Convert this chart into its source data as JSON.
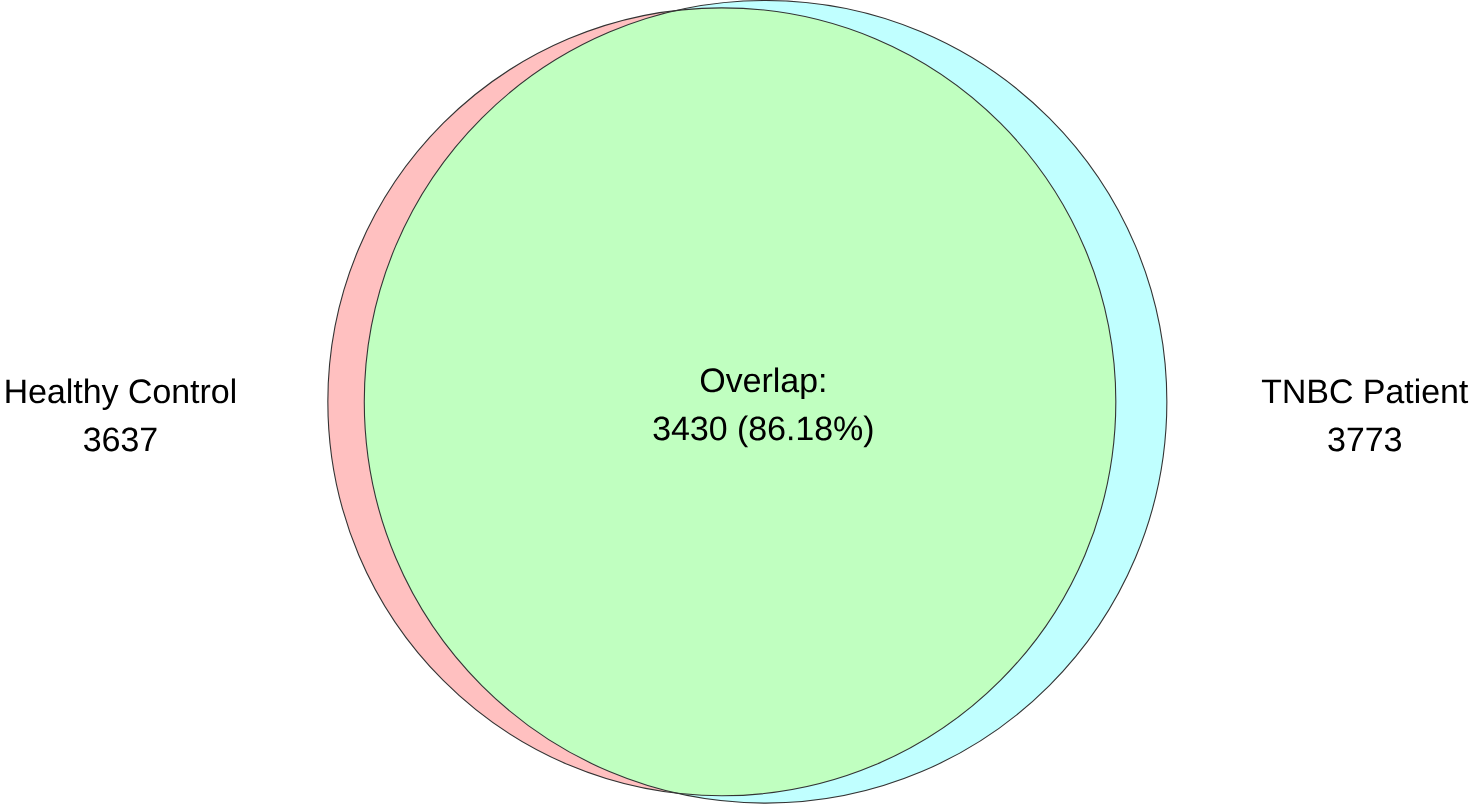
{
  "chart_data": {
    "type": "other",
    "categories": [
      "Healthy Control",
      "TNBC Patient"
    ],
    "values": [
      3637,
      3773
    ],
    "colors": [
      "#ffc0c0",
      "#c0ffff"
    ],
    "data_labels": true,
    "annotations": [
      "Overlap:",
      "3430 (86.18%)"
    ]
  }
}
